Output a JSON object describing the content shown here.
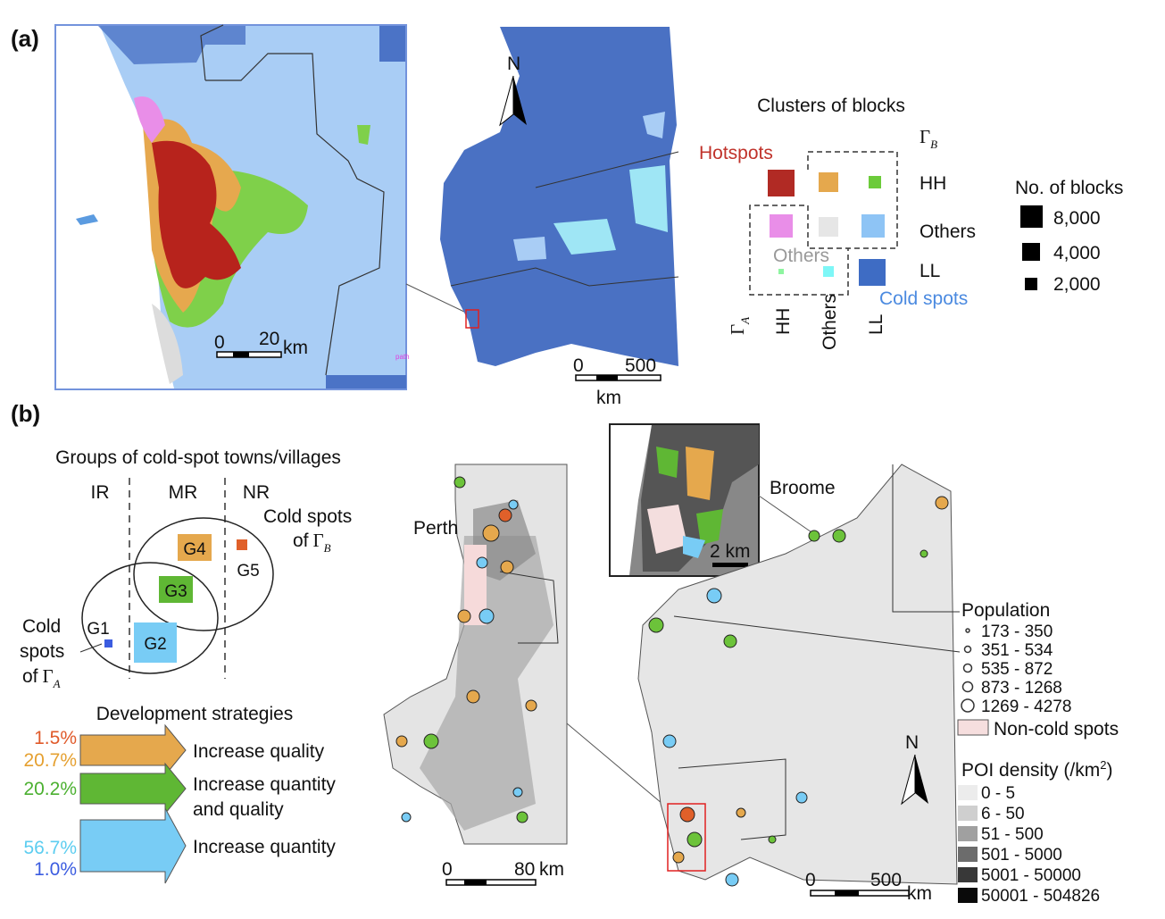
{
  "panel_a": {
    "label": "(a)",
    "inset_scale": {
      "start": "0",
      "end": "20",
      "unit": "km"
    },
    "inset_note": "path",
    "north": "N",
    "map_scale": {
      "start": "0",
      "end": "500",
      "unit": "km"
    },
    "legend": {
      "title": "Clusters of blocks",
      "gamma_b": {
        "symbol": "Γ",
        "subscript": "B"
      },
      "hotspots": "Hotspots",
      "rows": [
        "HH",
        "Others",
        "LL"
      ],
      "others_gray": "Others",
      "cold_spots": "Cold spots",
      "gamma_a": {
        "symbol": "Γ",
        "subscript": "A"
      },
      "columns": [
        "HH",
        "Others",
        "LL"
      ]
    },
    "size_legend": {
      "title": "No. of blocks",
      "items": [
        "8,000",
        "4,000",
        "2,000"
      ]
    }
  },
  "panel_b": {
    "label": "(b)",
    "groups": {
      "title": "Groups of cold-spot towns/villages",
      "regions": [
        "IR",
        "MR",
        "NR"
      ],
      "names": [
        "G1",
        "G2",
        "G3",
        "G4",
        "G5"
      ],
      "cold_b": {
        "line1": "Cold spots",
        "line2": "of",
        "symbol": "Γ",
        "subscript": "B"
      },
      "cold_a": {
        "line1": "Cold",
        "line2": "spots",
        "line3": "of",
        "symbol": "Γ",
        "subscript": "A"
      }
    },
    "strategies": {
      "title": "Development strategies",
      "percents": [
        "1.5%",
        "20.7%",
        "20.2%",
        "56.7%",
        "1.0%"
      ],
      "items": [
        "Increase quality",
        "Increase quantity",
        "and quality",
        "Increase quantity"
      ]
    },
    "left_map": {
      "city": "Perth",
      "scale": {
        "start": "0",
        "end": "80",
        "unit": "km"
      }
    },
    "inset": {
      "scale": "2 km",
      "city": "Broome"
    },
    "right_map": {
      "north": "N",
      "scale": {
        "start": "0",
        "end": "500",
        "unit": "km"
      }
    },
    "population": {
      "title": "Population",
      "items": [
        "173 - 350",
        "351 - 534",
        "535 - 872",
        "873 - 1268",
        "1269 - 4278"
      ],
      "non_cold": "Non-cold spots"
    },
    "poi": {
      "title": "POI density (/km",
      "sup": "2",
      "close": ")",
      "items": [
        "0 - 5",
        "6 - 50",
        "51 - 500",
        "501 - 5000",
        "5001 - 50000",
        "50001 - 504826"
      ]
    }
  }
}
